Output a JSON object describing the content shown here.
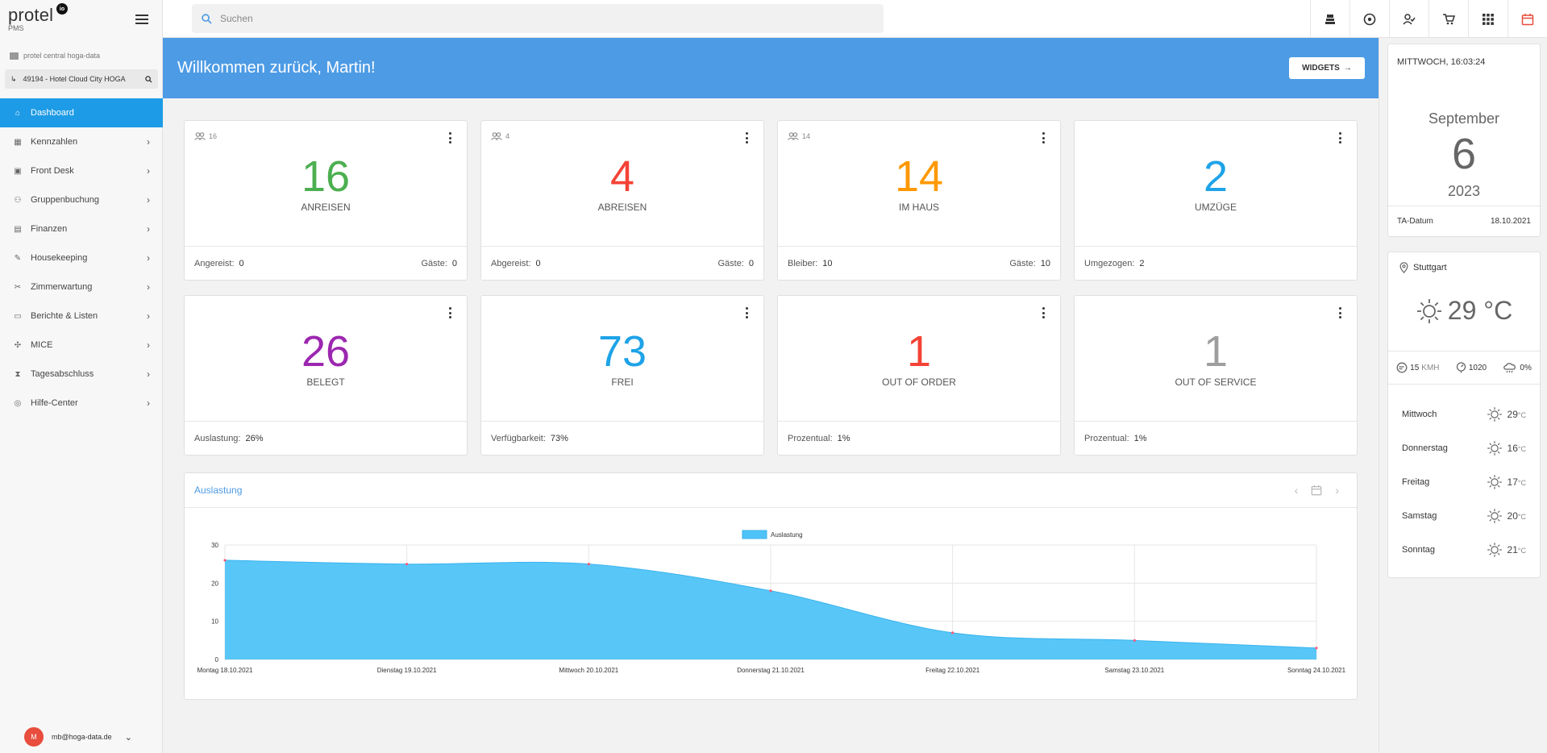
{
  "app": {
    "logo_text": "protel",
    "logo_badge": "io",
    "logo_sub": "PMS",
    "org": "protel central hoga-data",
    "hotel": "49194 - Hotel Cloud City HOGA"
  },
  "nav": [
    {
      "label": "Dashboard",
      "icon": "home-icon",
      "active": true
    },
    {
      "label": "Kennzahlen",
      "icon": "dashboard-icon"
    },
    {
      "label": "Front Desk",
      "icon": "desk-icon"
    },
    {
      "label": "Gruppenbuchung",
      "icon": "group-icon"
    },
    {
      "label": "Finanzen",
      "icon": "finance-icon"
    },
    {
      "label": "Housekeeping",
      "icon": "brush-icon"
    },
    {
      "label": "Zimmerwartung",
      "icon": "wrench-icon"
    },
    {
      "label": "Berichte & Listen",
      "icon": "report-icon"
    },
    {
      "label": "MICE",
      "icon": "mice-icon"
    },
    {
      "label": "Tagesabschluss",
      "icon": "hourglass-icon"
    },
    {
      "label": "Hilfe-Center",
      "icon": "help-icon"
    }
  ],
  "user": {
    "initial": "M",
    "email": "mb@hoga-data.de"
  },
  "search": {
    "placeholder": "Suchen"
  },
  "top_icons": [
    "bell-desk-icon",
    "target-icon",
    "person-check-icon",
    "cart-icon",
    "apps-grid-icon",
    "calendar-icon"
  ],
  "banner": {
    "title": "Willkommen zurück, Martin!",
    "widgets_label": "WIDGETS"
  },
  "cards": [
    {
      "top": "16",
      "num": "16",
      "label": "ANREISEN",
      "color": "#4caf50",
      "f_left_label": "Angereist:",
      "f_left_val": "0",
      "f_right_label": "Gäste:",
      "f_right_val": "0",
      "people": true
    },
    {
      "top": "4",
      "num": "4",
      "label": "ABREISEN",
      "color": "#f44336",
      "f_left_label": "Abgereist:",
      "f_left_val": "0",
      "f_right_label": "Gäste:",
      "f_right_val": "0",
      "people": true
    },
    {
      "top": "14",
      "num": "14",
      "label": "IM HAUS",
      "color": "#ff9800",
      "f_left_label": "Bleiber:",
      "f_left_val": "10",
      "f_right_label": "Gäste:",
      "f_right_val": "10",
      "people": true
    },
    {
      "top": "",
      "num": "2",
      "label": "UMZÜGE",
      "color": "#1ea3e8",
      "f_left_label": "Umgezogen:",
      "f_left_val": "2",
      "f_right_label": "",
      "f_right_val": "",
      "people": false
    },
    {
      "top": "",
      "num": "26",
      "label": "BELEGT",
      "color": "#9c27b0",
      "f_left_label": "Auslastung:",
      "f_left_val": "26%",
      "f_right_label": "",
      "f_right_val": "",
      "people": false
    },
    {
      "top": "",
      "num": "73",
      "label": "FREI",
      "color": "#1ea3e8",
      "f_left_label": "Verfügbarkeit:",
      "f_left_val": "73%",
      "f_right_label": "",
      "f_right_val": "",
      "people": false
    },
    {
      "top": "",
      "num": "1",
      "label": "OUT OF ORDER",
      "color": "#f44336",
      "f_left_label": "Prozentual:",
      "f_left_val": "1%",
      "f_right_label": "",
      "f_right_val": "",
      "people": false
    },
    {
      "top": "",
      "num": "1",
      "label": "OUT OF SERVICE",
      "color": "#9e9e9e",
      "f_left_label": "Prozentual:",
      "f_left_val": "1%",
      "f_right_label": "",
      "f_right_val": "",
      "people": false
    }
  ],
  "chart_panel": {
    "title": "Auslastung"
  },
  "chart_data": {
    "type": "area",
    "title": "",
    "x": [
      "Montag 18.10.2021",
      "Dienstag 19.10.2021",
      "Mittwoch 20.10.2021",
      "Donnerstag 21.10.2021",
      "Freitag 22.10.2021",
      "Samstag 23.10.2021",
      "Sonntag 24.10.2021"
    ],
    "series": [
      {
        "name": "Auslastung",
        "values": [
          26,
          25,
          25,
          18,
          7,
          5,
          3
        ],
        "color": "#4fc3f7"
      }
    ],
    "ylim": [
      0,
      30
    ],
    "yticks": [
      0,
      10,
      20,
      30
    ],
    "grid": true,
    "legend": "top"
  },
  "date_card": {
    "time": "MITTWOCH, 16:03:24",
    "month": "September",
    "day": "6",
    "year": "2023",
    "ta_label": "TA-Datum",
    "ta_value": "18.10.2021"
  },
  "weather": {
    "city": "Stuttgart",
    "temp": "29 °C",
    "wind": "15",
    "wind_unit": "KMH",
    "pressure": "1020",
    "rain": "0%",
    "days": [
      {
        "name": "Mittwoch",
        "temp": "29",
        "unit": "°C"
      },
      {
        "name": "Donnerstag",
        "temp": "16",
        "unit": "°C"
      },
      {
        "name": "Freitag",
        "temp": "17",
        "unit": "°C"
      },
      {
        "name": "Samstag",
        "temp": "20",
        "unit": "°C"
      },
      {
        "name": "Sonntag",
        "temp": "21",
        "unit": "°C"
      }
    ]
  }
}
